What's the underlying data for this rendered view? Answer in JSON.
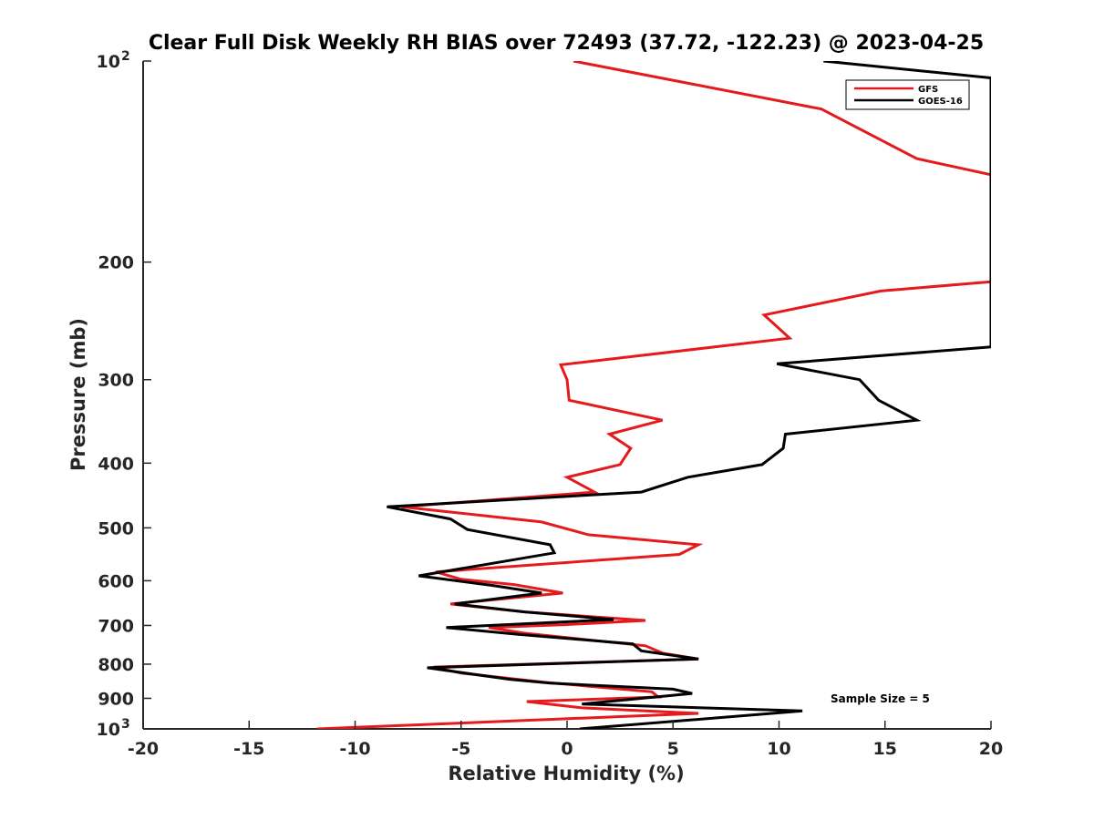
{
  "chart_data": {
    "type": "line",
    "title": "Clear Full Disk Weekly RH BIAS over 72493 (37.72, -122.23) @ 2023-04-25",
    "xlabel": "Relative Humidity (%)",
    "ylabel": "Pressure (mb)",
    "xlim": [
      -20,
      20
    ],
    "ylim": [
      100,
      1000
    ],
    "y_scale": "log",
    "y_reversed": true,
    "x_ticks": [
      "-20",
      "-15",
      "-10",
      "-5",
      "0",
      "5",
      "10",
      "15",
      "20"
    ],
    "y_ticks": [
      {
        "value": 100,
        "base": "10",
        "exp": "2"
      },
      {
        "value": 200,
        "label": "200"
      },
      {
        "value": 300,
        "label": "300"
      },
      {
        "value": 400,
        "label": "400"
      },
      {
        "value": 500,
        "label": "500"
      },
      {
        "value": 600,
        "label": "600"
      },
      {
        "value": 700,
        "label": "700"
      },
      {
        "value": 800,
        "label": "800"
      },
      {
        "value": 900,
        "label": "900"
      },
      {
        "value": 1000,
        "base": "10",
        "exp": "3"
      }
    ],
    "legend_position": "top-right",
    "grid": false,
    "annotation": "Sample Size = 5",
    "series": [
      {
        "name": "GFS",
        "color": "#e41a1c",
        "points": [
          [
            0.3,
            100
          ],
          [
            12.0,
            118
          ],
          [
            16.5,
            140
          ],
          [
            20.0,
            148
          ],
          [
            20.0,
            214
          ],
          [
            14.8,
            221
          ],
          [
            9.3,
            240
          ],
          [
            10.5,
            260
          ],
          [
            -0.3,
            285
          ],
          [
            0.0,
            300
          ],
          [
            0.1,
            322
          ],
          [
            4.5,
            345
          ],
          [
            2.0,
            362
          ],
          [
            3.0,
            380
          ],
          [
            2.5,
            402
          ],
          [
            0.0,
            420
          ],
          [
            1.3,
            442
          ],
          [
            -7.8,
            465
          ],
          [
            -1.2,
            490
          ],
          [
            1.0,
            512
          ],
          [
            6.2,
            530
          ],
          [
            5.3,
            548
          ],
          [
            -6.2,
            582
          ],
          [
            -5.0,
            597
          ],
          [
            -2.5,
            608
          ],
          [
            -0.2,
            626
          ],
          [
            -5.5,
            650
          ],
          [
            -2.0,
            668
          ],
          [
            3.7,
            688
          ],
          [
            0.0,
            698
          ],
          [
            -3.7,
            705
          ],
          [
            -2.0,
            719
          ],
          [
            3.7,
            751
          ],
          [
            4.5,
            770
          ],
          [
            6.2,
            786
          ],
          [
            -6.3,
            808
          ],
          [
            -5.0,
            825
          ],
          [
            -1.0,
            852
          ],
          [
            4.0,
            880
          ],
          [
            4.3,
            896
          ],
          [
            -1.9,
            910
          ],
          [
            0.7,
            930
          ],
          [
            6.2,
            948
          ],
          [
            -11.8,
            1000
          ]
        ]
      },
      {
        "name": "GOES-16",
        "color": "#000000",
        "points": [
          [
            12.1,
            100
          ],
          [
            20.0,
            106
          ],
          [
            20.0,
            268
          ],
          [
            9.9,
            284
          ],
          [
            13.8,
            300
          ],
          [
            14.7,
            322
          ],
          [
            16.5,
            345
          ],
          [
            10.3,
            362
          ],
          [
            10.2,
            380
          ],
          [
            9.2,
            402
          ],
          [
            5.7,
            420
          ],
          [
            3.5,
            442
          ],
          [
            -8.5,
            465
          ],
          [
            -5.5,
            485
          ],
          [
            -4.7,
            503
          ],
          [
            -0.8,
            530
          ],
          [
            -0.6,
            545
          ],
          [
            -7.0,
            590
          ],
          [
            -3.5,
            610
          ],
          [
            -1.2,
            626
          ],
          [
            -5.3,
            650
          ],
          [
            -2.0,
            668
          ],
          [
            2.2,
            686
          ],
          [
            -5.7,
            705
          ],
          [
            -2.3,
            722
          ],
          [
            3.1,
            746
          ],
          [
            3.5,
            764
          ],
          [
            6.2,
            786
          ],
          [
            -6.6,
            810
          ],
          [
            -2.7,
            843
          ],
          [
            -0.8,
            854
          ],
          [
            5.0,
            872
          ],
          [
            5.9,
            885
          ],
          [
            0.7,
            918
          ],
          [
            11.1,
            940
          ],
          [
            0.6,
            1000
          ]
        ]
      }
    ]
  }
}
